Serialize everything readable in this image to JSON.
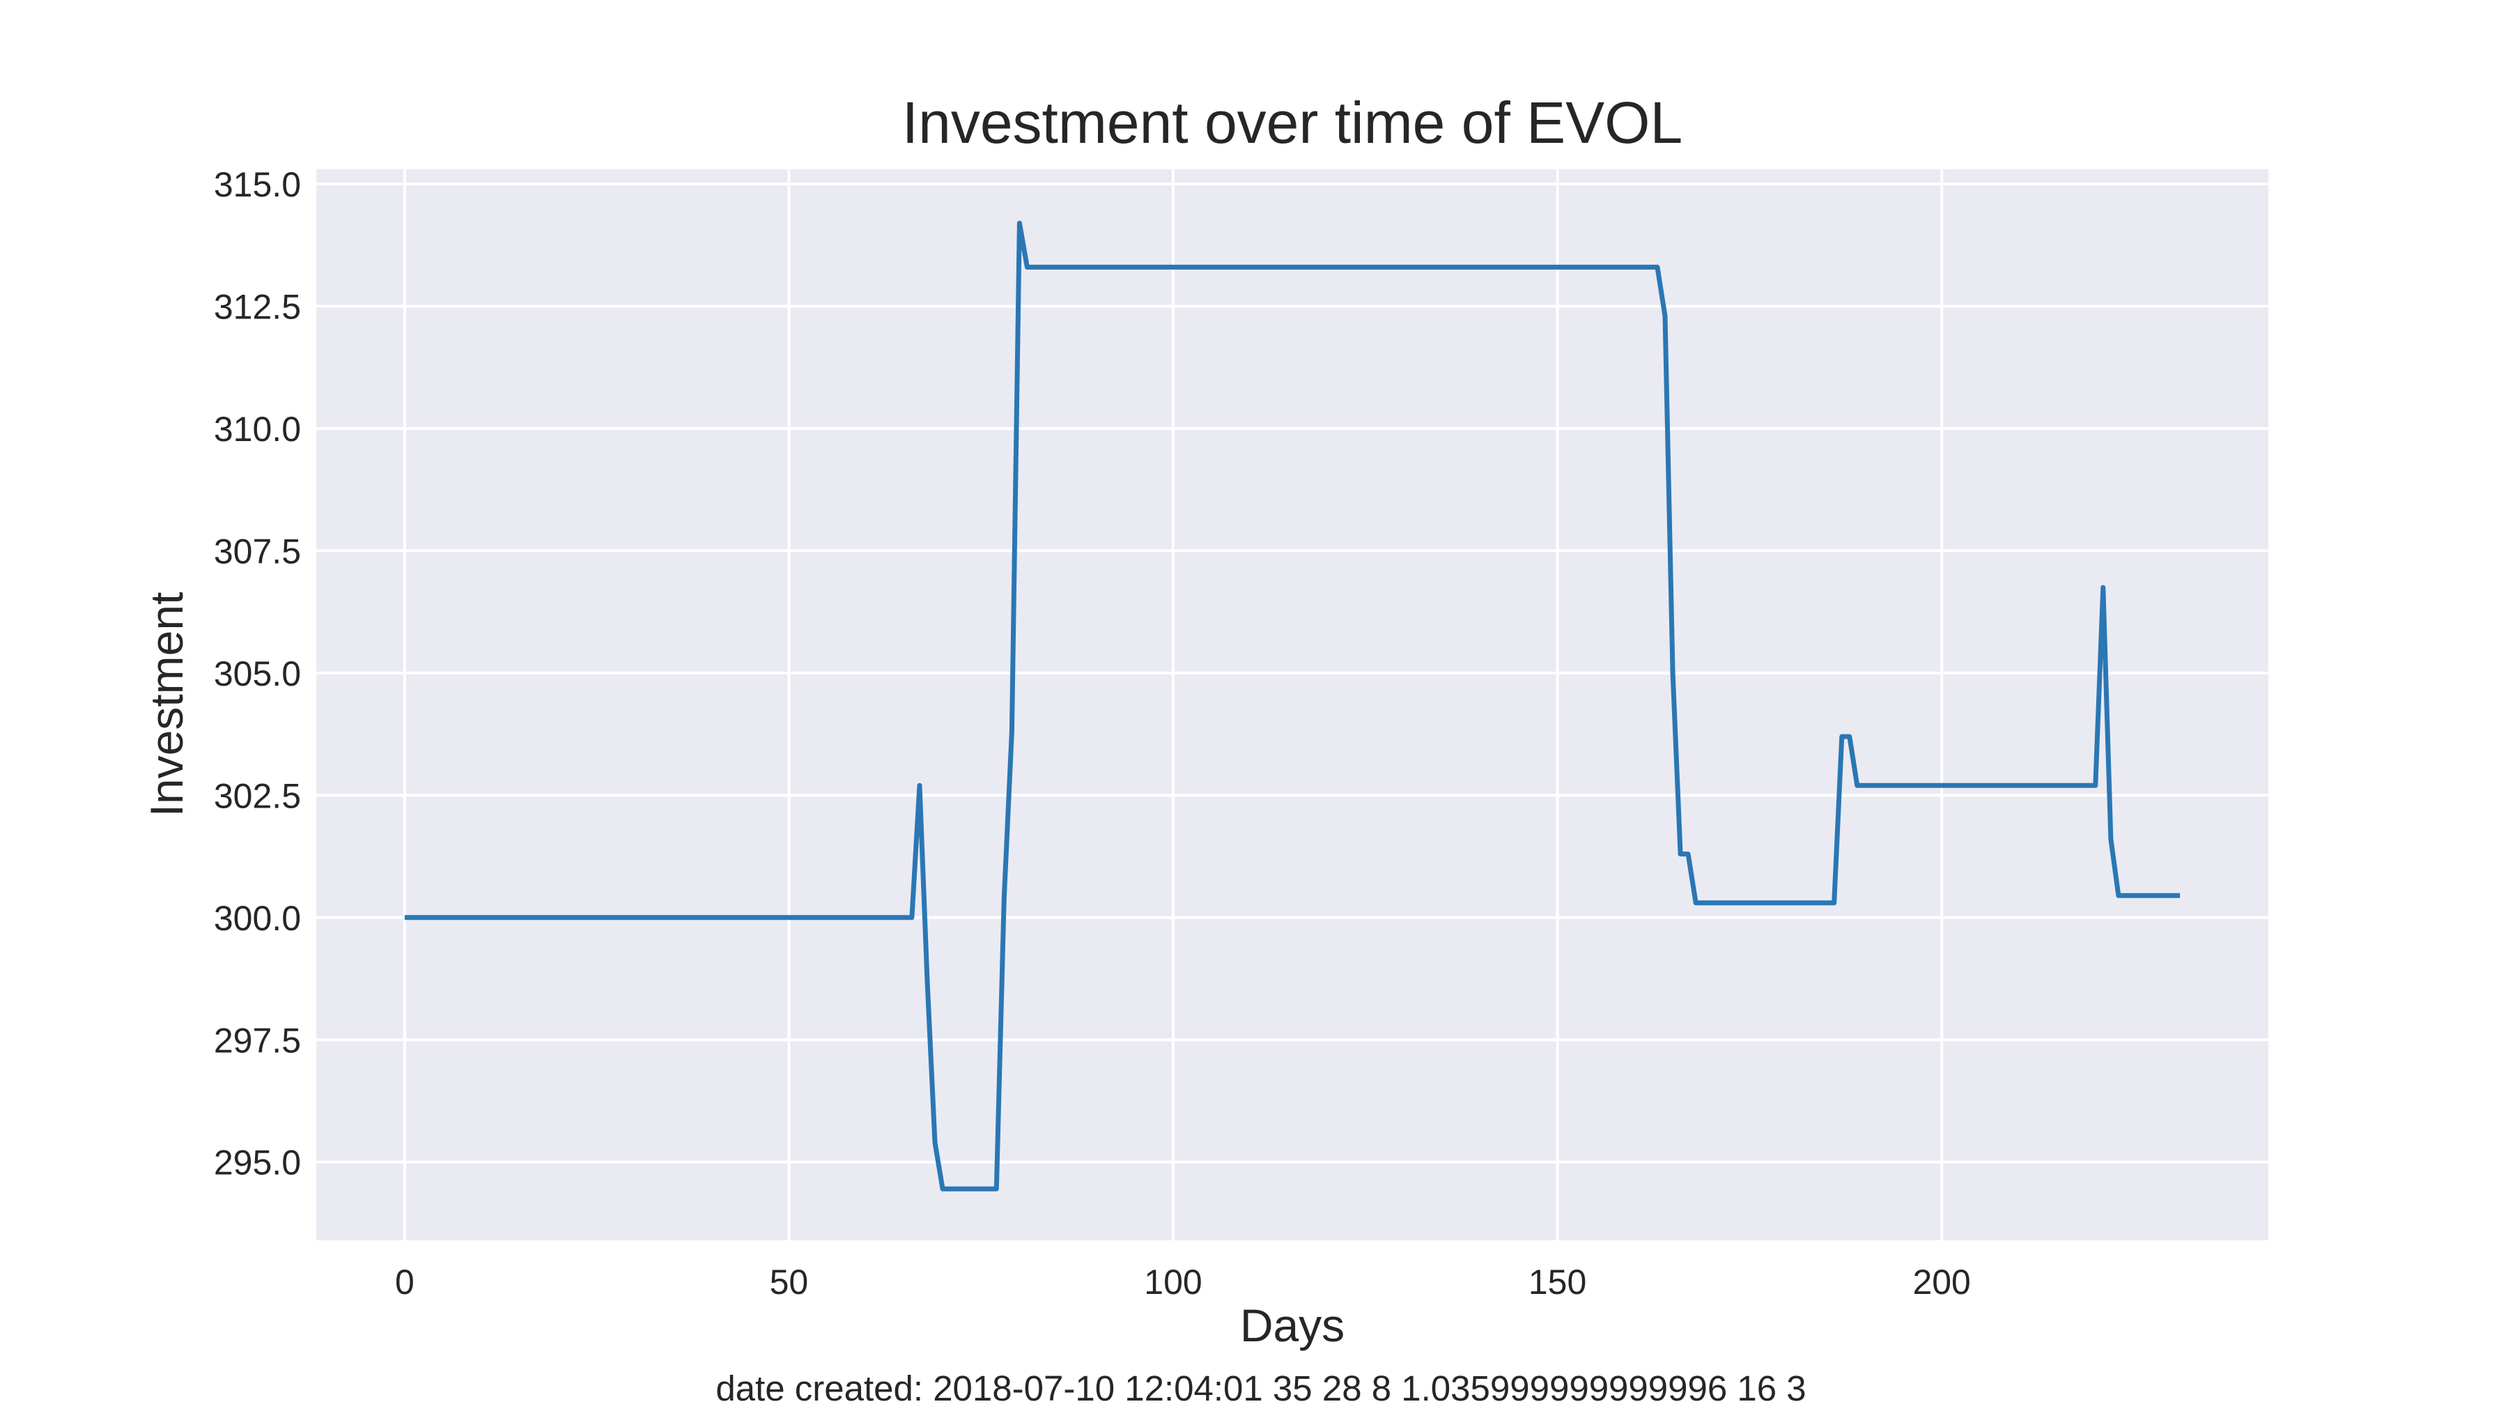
{
  "chart_data": {
    "type": "line",
    "title": "Investment over time of EVOL",
    "xlabel": "Days",
    "ylabel": "Investment",
    "footer": "date created: 2018-07-10 12:04:01 35 28 8 1.035999999999996 16 3",
    "xlim": [
      -11.5,
      242.5
    ],
    "ylim": [
      293.4,
      315.3
    ],
    "x_ticks": [
      0,
      50,
      100,
      150,
      200
    ],
    "y_ticks": [
      295.0,
      297.5,
      300.0,
      302.5,
      305.0,
      307.5,
      310.0,
      312.5,
      315.0
    ],
    "x_tick_labels": [
      "0",
      "50",
      "100",
      "150",
      "200"
    ],
    "y_tick_labels": [
      "295.0",
      "297.5",
      "300.0",
      "302.5",
      "305.0",
      "307.5",
      "310.0",
      "312.5",
      "315.0"
    ],
    "grid": true,
    "colors": {
      "background": "#eaeaf2",
      "grid": "#ffffff",
      "line": "#2a77b4"
    },
    "series": [
      {
        "x": [
          0,
          66,
          67,
          68,
          69,
          70,
          71,
          72,
          73,
          74,
          75,
          76,
          77,
          78,
          79,
          80,
          81,
          82,
          90,
          100,
          110,
          120,
          130,
          140,
          150,
          160,
          163,
          164,
          165,
          166,
          167,
          168,
          170,
          175,
          180,
          186,
          187,
          188,
          189,
          190,
          200,
          210,
          220,
          221,
          222,
          223,
          224,
          231
        ],
        "y": [
          300.0,
          300.0,
          302.7,
          298.7,
          295.4,
          294.45,
          294.45,
          294.45,
          294.45,
          294.45,
          294.45,
          294.45,
          294.45,
          300.4,
          303.8,
          314.2,
          313.3,
          313.3,
          313.3,
          313.3,
          313.3,
          313.3,
          313.3,
          313.3,
          313.3,
          313.3,
          313.3,
          312.3,
          305.0,
          301.3,
          301.3,
          300.3,
          300.3,
          300.3,
          300.3,
          300.3,
          303.7,
          303.7,
          302.7,
          302.7,
          302.7,
          302.7,
          302.7,
          306.75,
          301.6,
          300.45,
          300.45,
          300.45
        ]
      }
    ]
  }
}
